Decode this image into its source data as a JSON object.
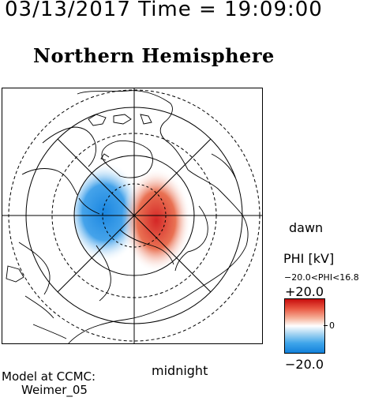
{
  "header": {
    "timestamp": "03/13/2017 Time = 19:09:00",
    "title": "Northern Hemisphere"
  },
  "map": {
    "labels": {
      "dawn": "dawn",
      "midnight": "midnight"
    },
    "colors": {
      "positive": "#d91c1c",
      "negative": "#1a86e0",
      "neutral": "#ffffff",
      "line": "#000000"
    },
    "icons": [
      "coastline-map",
      "polar-grid"
    ]
  },
  "colorbar": {
    "title": "PHI [kV]",
    "range_text": "−20.0<PHI<16.8",
    "max_label": "+20.0",
    "mid_label": "0",
    "min_label": "−20.0",
    "max_value": 20.0,
    "min_value": -20.0
  },
  "footer": {
    "model_line1": "Model at CCMC:",
    "model_line2": "Weimer_05"
  }
}
